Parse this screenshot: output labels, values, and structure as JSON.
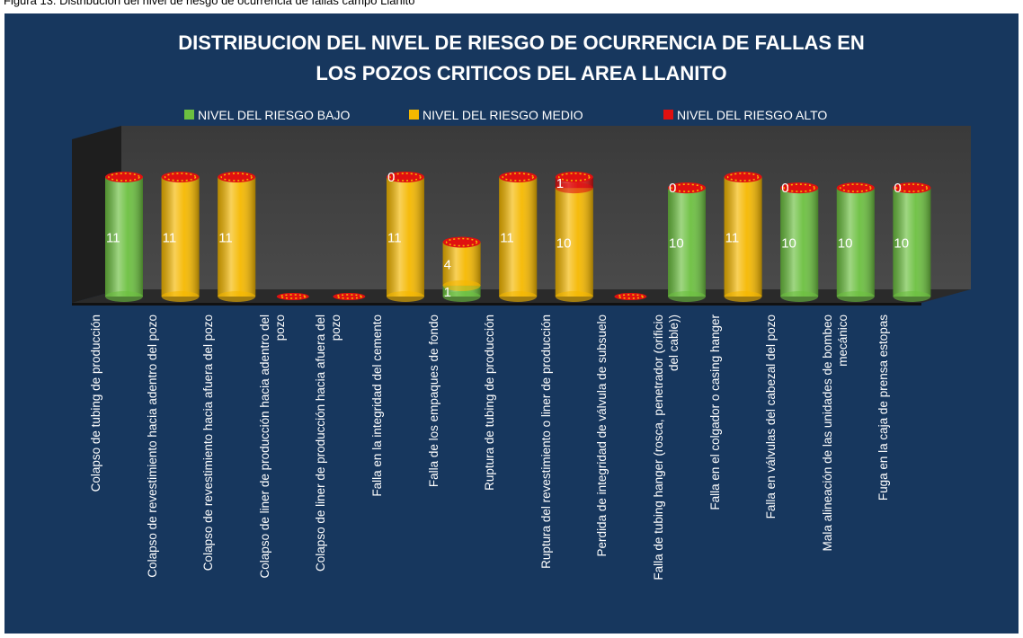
{
  "figure_caption": "Figura 13. Distribución del nivel de riesgo de ocurrencia de fallas campo Llanito",
  "chart_data": {
    "type": "bar",
    "stacked": true,
    "title": "DISTRIBUCION DEL NIVEL DE RIESGO DE OCURRENCIA DE FALLAS EN LOS POZOS CRITICOS DEL AREA LLANITO",
    "categories": [
      "Colapso de tubing de producción",
      "Colapso de revestimiento hacia adentro del pozo",
      "Colapso de revestimiento hacia afuera del pozo",
      "Colapso de liner de producción hacia adentro del pozo",
      "Colapso de liner de producción hacia afuera del pozo",
      "Falla en la integridad del cemento",
      "Falla de los empaques de fondo",
      "Ruptura de tubing de producción",
      "Ruptura del revestimiento o liner de producción",
      "Perdida de integridad de válvula de subsuelo",
      "Falla de tubing hanger (rosca, penetrador (orificio del cable))",
      "Falla en el colgador o casing hanger",
      "Falla en válvulas del cabezal del pozo",
      "Mala alineación de las unidades de bombeo mecánico",
      "Fuga en la caja de prensa estopas"
    ],
    "series": [
      {
        "name": "NIVEL DEL RIESGO BAJO",
        "color": "#6cc040",
        "values": [
          11,
          null,
          null,
          null,
          null,
          null,
          1,
          null,
          null,
          null,
          10,
          null,
          10,
          10,
          10
        ]
      },
      {
        "name": "NIVEL DEL RIESGO MEDIO",
        "color": "#f5b800",
        "values": [
          null,
          11,
          11,
          null,
          null,
          11,
          4,
          11,
          10,
          null,
          null,
          11,
          null,
          null,
          null
        ]
      },
      {
        "name": "NIVEL DEL RIESGO ALTO",
        "color": "#e01010",
        "values": [
          null,
          null,
          null,
          null,
          null,
          0,
          null,
          null,
          1,
          null,
          0,
          null,
          0,
          null,
          0
        ]
      }
    ],
    "legend": "top"
  }
}
